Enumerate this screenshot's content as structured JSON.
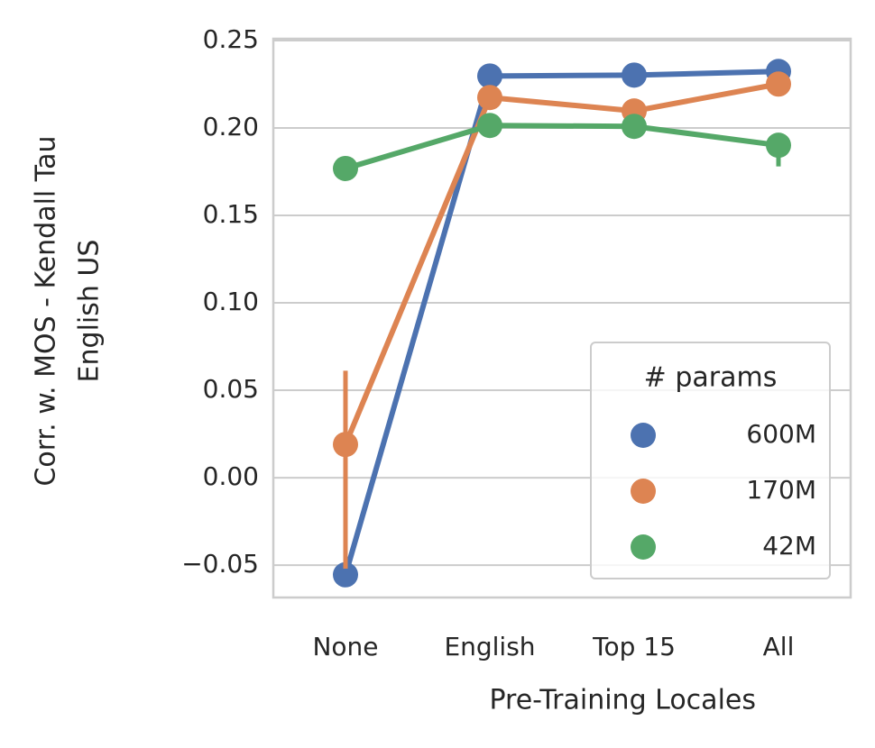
{
  "chart_data": {
    "type": "pointplot",
    "xlabel": "Pre-Training Locales",
    "ylabel": [
      "Corr. w. MOS - Kendall Tau",
      "English US"
    ],
    "categories": [
      "None",
      "English",
      "Top 15",
      "All"
    ],
    "ylim": [
      -0.0685,
      0.251
    ],
    "yticks": [
      {
        "value": -0.05,
        "label": "−0.05"
      },
      {
        "value": 0,
        "label": "0.00"
      },
      0.05,
      {
        "value": 0.1,
        "label": "0.10"
      },
      0.15,
      {
        "value": 0.2,
        "label": "0.20"
      },
      0.25
    ],
    "grid": true,
    "legend_title": "# params",
    "legend_loc": "lower right",
    "series": [
      {
        "name": "600M",
        "color": "#4c72b0",
        "values": [
          -0.0555,
          0.2297,
          0.2302,
          0.2323
        ],
        "ci": [
          [
            -0.058,
            -0.053
          ],
          [
            0.228,
            0.231
          ],
          [
            0.229,
            0.232
          ],
          [
            0.231,
            0.234
          ]
        ]
      },
      {
        "name": "170M",
        "color": "#dd8452",
        "values": [
          0.019,
          0.2174,
          0.2097,
          0.2251
        ],
        "ci": [
          [
            -0.052,
            0.0612
          ],
          [
            0.215,
            0.22
          ],
          [
            0.205,
            0.214
          ],
          [
            0.223,
            0.227
          ]
        ]
      },
      {
        "name": "42M",
        "color": "#55a868",
        "values": [
          0.1768,
          0.2014,
          0.2009,
          0.1901
        ],
        "ci": [
          [
            0.175,
            0.179
          ],
          [
            0.195,
            0.2076
          ],
          [
            0.197,
            0.205
          ],
          [
            0.178,
            0.197
          ]
        ]
      }
    ]
  }
}
